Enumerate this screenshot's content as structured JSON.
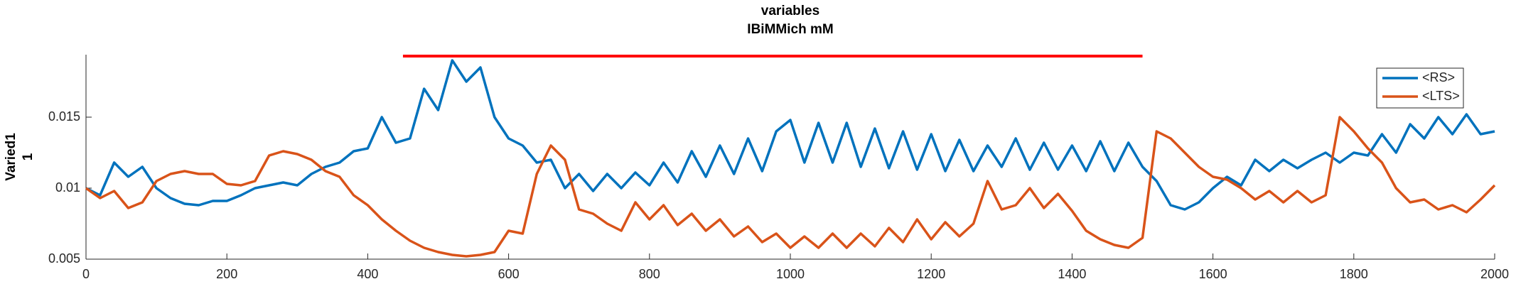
{
  "chart_data": {
    "type": "line",
    "title": "variables",
    "subtitle": "IBiMMich mM",
    "ylabel": [
      "Varied1",
      "1"
    ],
    "x": [
      0,
      20,
      40,
      60,
      80,
      100,
      120,
      140,
      160,
      180,
      200,
      220,
      240,
      260,
      280,
      300,
      320,
      340,
      360,
      380,
      400,
      420,
      440,
      460,
      480,
      500,
      520,
      540,
      560,
      580,
      600,
      620,
      640,
      660,
      680,
      700,
      720,
      740,
      760,
      780,
      800,
      820,
      840,
      860,
      880,
      900,
      920,
      940,
      960,
      980,
      1000,
      1020,
      1040,
      1060,
      1080,
      1100,
      1120,
      1140,
      1160,
      1180,
      1200,
      1220,
      1240,
      1260,
      1280,
      1300,
      1320,
      1340,
      1360,
      1380,
      1400,
      1420,
      1440,
      1460,
      1480,
      1500,
      1520,
      1540,
      1560,
      1580,
      1600,
      1620,
      1640,
      1660,
      1680,
      1700,
      1720,
      1740,
      1760,
      1780,
      1800,
      1820,
      1840,
      1860,
      1880,
      1900,
      1920,
      1940,
      1960,
      1980,
      2000
    ],
    "series": [
      {
        "name": "<RS>",
        "color": "#0072bd",
        "values": [
          0.01,
          0.0095,
          0.0118,
          0.0108,
          0.0115,
          0.01,
          0.0093,
          0.0089,
          0.0088,
          0.0091,
          0.0091,
          0.0095,
          0.01,
          0.0102,
          0.0104,
          0.0102,
          0.011,
          0.0115,
          0.0118,
          0.0126,
          0.0128,
          0.015,
          0.0132,
          0.0135,
          0.017,
          0.0155,
          0.019,
          0.0175,
          0.0185,
          0.015,
          0.0135,
          0.013,
          0.0118,
          0.012,
          0.01,
          0.011,
          0.0098,
          0.011,
          0.01,
          0.0111,
          0.0102,
          0.0118,
          0.0104,
          0.0126,
          0.0108,
          0.013,
          0.011,
          0.0135,
          0.0112,
          0.014,
          0.0148,
          0.0118,
          0.0146,
          0.0118,
          0.0146,
          0.0115,
          0.0142,
          0.0114,
          0.014,
          0.0113,
          0.0138,
          0.0112,
          0.0134,
          0.0112,
          0.013,
          0.0115,
          0.0135,
          0.0113,
          0.0132,
          0.0113,
          0.013,
          0.0112,
          0.0133,
          0.0112,
          0.0132,
          0.0115,
          0.0105,
          0.0088,
          0.0085,
          0.009,
          0.01,
          0.0108,
          0.0102,
          0.012,
          0.0112,
          0.012,
          0.0114,
          0.012,
          0.0125,
          0.0118,
          0.0125,
          0.0123,
          0.0138,
          0.0125,
          0.0145,
          0.0135,
          0.015,
          0.0138,
          0.0152,
          0.0138,
          0.014
        ]
      },
      {
        "name": "<LTS>",
        "color": "#d95319",
        "values": [
          0.01,
          0.0093,
          0.0098,
          0.0086,
          0.009,
          0.0105,
          0.011,
          0.0112,
          0.011,
          0.011,
          0.0103,
          0.0102,
          0.0105,
          0.0123,
          0.0126,
          0.0124,
          0.012,
          0.0112,
          0.0108,
          0.0095,
          0.0088,
          0.0078,
          0.007,
          0.0063,
          0.0058,
          0.0055,
          0.0053,
          0.0052,
          0.0053,
          0.0055,
          0.007,
          0.0068,
          0.011,
          0.013,
          0.012,
          0.0085,
          0.0082,
          0.0075,
          0.007,
          0.009,
          0.0078,
          0.0088,
          0.0074,
          0.0082,
          0.007,
          0.0078,
          0.0066,
          0.0073,
          0.0062,
          0.0068,
          0.0058,
          0.0066,
          0.0058,
          0.0068,
          0.0058,
          0.0068,
          0.0059,
          0.0072,
          0.0062,
          0.0078,
          0.0064,
          0.0076,
          0.0066,
          0.0075,
          0.0105,
          0.0085,
          0.0088,
          0.01,
          0.0086,
          0.0096,
          0.0084,
          0.007,
          0.0064,
          0.006,
          0.0058,
          0.0065,
          0.014,
          0.0135,
          0.0125,
          0.0115,
          0.0108,
          0.0106,
          0.01,
          0.0092,
          0.0098,
          0.009,
          0.0098,
          0.009,
          0.0095,
          0.015,
          0.014,
          0.0128,
          0.0118,
          0.01,
          0.009,
          0.0092,
          0.0085,
          0.0088,
          0.0083,
          0.0092,
          0.0102
        ]
      }
    ],
    "hline": {
      "y": 0.0193,
      "xmin": 450,
      "xmax": 1500,
      "color": "#ff0000"
    },
    "xlim": [
      0,
      2000
    ],
    "xticks": [
      0,
      200,
      400,
      600,
      800,
      1000,
      1200,
      1400,
      1600,
      1800,
      2000
    ],
    "ylim": [
      0.005,
      0.0194
    ],
    "yticks": [
      0.005,
      0.01,
      0.015
    ],
    "legend": "upper right"
  }
}
